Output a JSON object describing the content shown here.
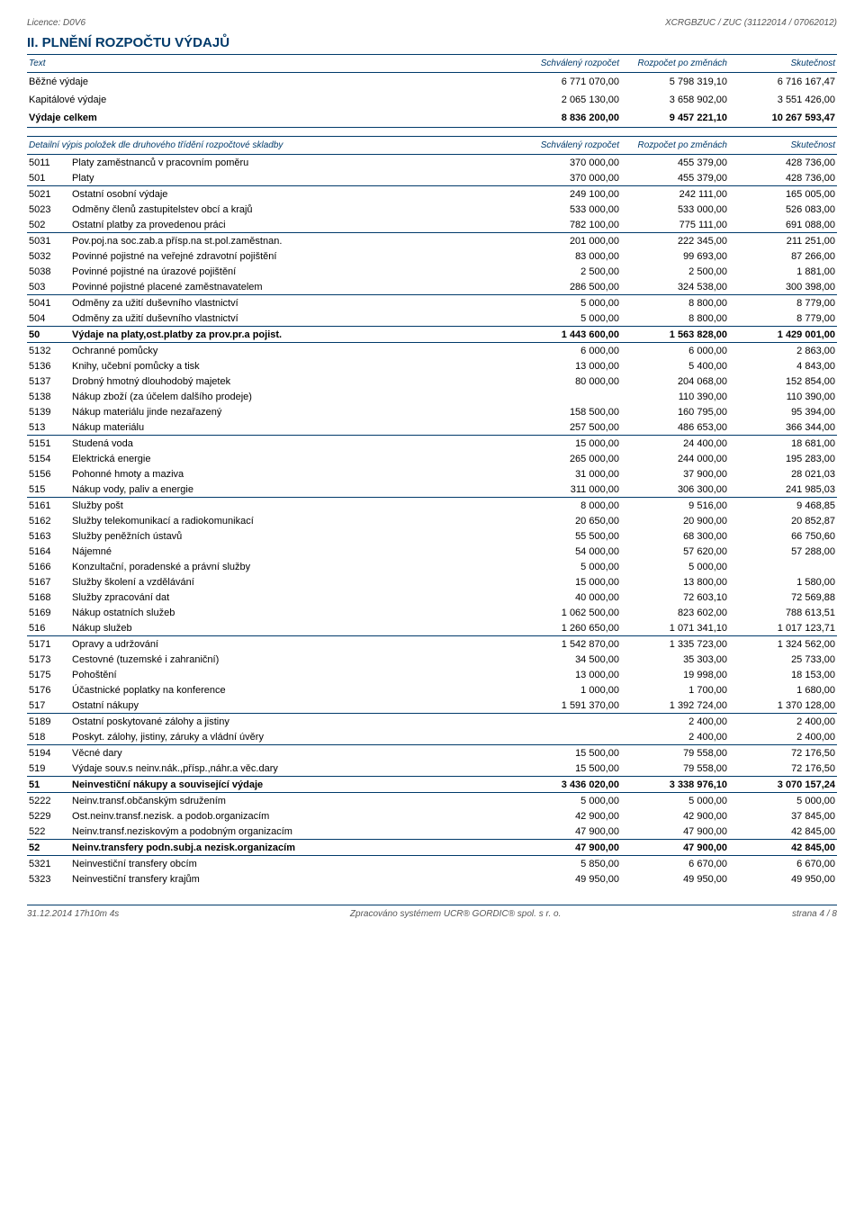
{
  "header": {
    "left": "Licence: D0V6",
    "right": "XCRGBZUC / ZUC (31122014 / 07062012)"
  },
  "title": "II. PLNĚNÍ ROZPOČTU VÝDAJŮ",
  "columns": {
    "text": "Text",
    "c1": "Schválený rozpočet",
    "c2": "Rozpočet po změnách",
    "c3": "Skutečnost"
  },
  "summary": [
    {
      "label": "Běžné výdaje",
      "v1": "6 771 070,00",
      "v2": "5 798 319,10",
      "v3": "6 716 167,47"
    },
    {
      "label": "Kapitálové výdaje",
      "v1": "2 065 130,00",
      "v2": "3 658 902,00",
      "v3": "3 551 426,00"
    },
    {
      "label": "Výdaje celkem",
      "v1": "8 836 200,00",
      "v2": "9 457 221,10",
      "v3": "10 267 593,47",
      "bold": true
    }
  ],
  "detail_header": "Detailní výpis položek dle druhového třídění rozpočtové skladby",
  "rows": [
    {
      "code": "5011",
      "label": "Platy zaměstnanců v pracovním poměru",
      "v1": "370 000,00",
      "v2": "455 379,00",
      "v3": "428 736,00"
    },
    {
      "code": "501",
      "label": "Platy",
      "v1": "370 000,00",
      "v2": "455 379,00",
      "v3": "428 736,00",
      "underline": true
    },
    {
      "code": "5021",
      "label": "Ostatní osobní výdaje",
      "v1": "249 100,00",
      "v2": "242 111,00",
      "v3": "165 005,00"
    },
    {
      "code": "5023",
      "label": "Odměny členů zastupitelstev obcí a krajů",
      "v1": "533 000,00",
      "v2": "533 000,00",
      "v3": "526 083,00"
    },
    {
      "code": "502",
      "label": "Ostatní platby za provedenou práci",
      "v1": "782 100,00",
      "v2": "775 111,00",
      "v3": "691 088,00",
      "underline": true
    },
    {
      "code": "5031",
      "label": "Pov.poj.na soc.zab.a přísp.na st.pol.zaměstnan.",
      "v1": "201 000,00",
      "v2": "222 345,00",
      "v3": "211 251,00"
    },
    {
      "code": "5032",
      "label": "Povinné pojistné na veřejné zdravotní pojištění",
      "v1": "83 000,00",
      "v2": "99 693,00",
      "v3": "87 266,00"
    },
    {
      "code": "5038",
      "label": "Povinné pojistné na úrazové pojištění",
      "v1": "2 500,00",
      "v2": "2 500,00",
      "v3": "1 881,00"
    },
    {
      "code": "503",
      "label": "Povinné pojistné placené zaměstnavatelem",
      "v1": "286 500,00",
      "v2": "324 538,00",
      "v3": "300 398,00",
      "underline": true
    },
    {
      "code": "5041",
      "label": "Odměny za užití duševního vlastnictví",
      "v1": "5 000,00",
      "v2": "8 800,00",
      "v3": "8 779,00"
    },
    {
      "code": "504",
      "label": "Odměny za užití duševního vlastnictví",
      "v1": "5 000,00",
      "v2": "8 800,00",
      "v3": "8 779,00",
      "underline": true
    },
    {
      "code": "50",
      "label": "Výdaje na platy,ost.platby za prov.pr.a pojist.",
      "v1": "1 443 600,00",
      "v2": "1 563 828,00",
      "v3": "1 429 001,00",
      "bold": true,
      "underline": true
    },
    {
      "code": "5132",
      "label": "Ochranné pomůcky",
      "v1": "6 000,00",
      "v2": "6 000,00",
      "v3": "2 863,00"
    },
    {
      "code": "5136",
      "label": "Knihy, učební pomůcky a tisk",
      "v1": "13 000,00",
      "v2": "5 400,00",
      "v3": "4 843,00"
    },
    {
      "code": "5137",
      "label": "Drobný hmotný dlouhodobý majetek",
      "v1": "80 000,00",
      "v2": "204 068,00",
      "v3": "152 854,00"
    },
    {
      "code": "5138",
      "label": "Nákup zboží (za účelem dalšího prodeje)",
      "v1": "",
      "v2": "110 390,00",
      "v3": "110 390,00"
    },
    {
      "code": "5139",
      "label": "Nákup materiálu jinde nezařazený",
      "v1": "158 500,00",
      "v2": "160 795,00",
      "v3": "95 394,00"
    },
    {
      "code": "513",
      "label": "Nákup materiálu",
      "v1": "257 500,00",
      "v2": "486 653,00",
      "v3": "366 344,00",
      "underline": true
    },
    {
      "code": "5151",
      "label": "Studená voda",
      "v1": "15 000,00",
      "v2": "24 400,00",
      "v3": "18 681,00"
    },
    {
      "code": "5154",
      "label": "Elektrická energie",
      "v1": "265 000,00",
      "v2": "244 000,00",
      "v3": "195 283,00"
    },
    {
      "code": "5156",
      "label": "Pohonné hmoty a maziva",
      "v1": "31 000,00",
      "v2": "37 900,00",
      "v3": "28 021,03"
    },
    {
      "code": "515",
      "label": "Nákup vody, paliv a energie",
      "v1": "311 000,00",
      "v2": "306 300,00",
      "v3": "241 985,03",
      "underline": true
    },
    {
      "code": "5161",
      "label": "Služby pošt",
      "v1": "8 000,00",
      "v2": "9 516,00",
      "v3": "9 468,85"
    },
    {
      "code": "5162",
      "label": "Služby telekomunikací a radiokomunikací",
      "v1": "20 650,00",
      "v2": "20 900,00",
      "v3": "20 852,87"
    },
    {
      "code": "5163",
      "label": "Služby peněžních ústavů",
      "v1": "55 500,00",
      "v2": "68 300,00",
      "v3": "66 750,60"
    },
    {
      "code": "5164",
      "label": "Nájemné",
      "v1": "54 000,00",
      "v2": "57 620,00",
      "v3": "57 288,00"
    },
    {
      "code": "5166",
      "label": "Konzultační, poradenské a právní služby",
      "v1": "5 000,00",
      "v2": "5 000,00",
      "v3": ""
    },
    {
      "code": "5167",
      "label": "Služby školení a vzdělávání",
      "v1": "15 000,00",
      "v2": "13 800,00",
      "v3": "1 580,00"
    },
    {
      "code": "5168",
      "label": "Služby zpracování dat",
      "v1": "40 000,00",
      "v2": "72 603,10",
      "v3": "72 569,88"
    },
    {
      "code": "5169",
      "label": "Nákup ostatních služeb",
      "v1": "1 062 500,00",
      "v2": "823 602,00",
      "v3": "788 613,51"
    },
    {
      "code": "516",
      "label": "Nákup služeb",
      "v1": "1 260 650,00",
      "v2": "1 071 341,10",
      "v3": "1 017 123,71",
      "underline": true
    },
    {
      "code": "5171",
      "label": "Opravy a udržování",
      "v1": "1 542 870,00",
      "v2": "1 335 723,00",
      "v3": "1 324 562,00"
    },
    {
      "code": "5173",
      "label": "Cestovné (tuzemské i zahraniční)",
      "v1": "34 500,00",
      "v2": "35 303,00",
      "v3": "25 733,00"
    },
    {
      "code": "5175",
      "label": "Pohoštění",
      "v1": "13 000,00",
      "v2": "19 998,00",
      "v3": "18 153,00"
    },
    {
      "code": "5176",
      "label": "Účastnické poplatky na konference",
      "v1": "1 000,00",
      "v2": "1 700,00",
      "v3": "1 680,00"
    },
    {
      "code": "517",
      "label": "Ostatní nákupy",
      "v1": "1 591 370,00",
      "v2": "1 392 724,00",
      "v3": "1 370 128,00",
      "underline": true
    },
    {
      "code": "5189",
      "label": "Ostatní poskytované zálohy a jistiny",
      "v1": "",
      "v2": "2 400,00",
      "v3": "2 400,00"
    },
    {
      "code": "518",
      "label": "Poskyt. zálohy, jistiny, záruky a vládní úvěry",
      "v1": "",
      "v2": "2 400,00",
      "v3": "2 400,00",
      "underline": true
    },
    {
      "code": "5194",
      "label": "Věcné dary",
      "v1": "15 500,00",
      "v2": "79 558,00",
      "v3": "72 176,50"
    },
    {
      "code": "519",
      "label": "Výdaje souv.s neinv.nák.,přísp.,náhr.a věc.dary",
      "v1": "15 500,00",
      "v2": "79 558,00",
      "v3": "72 176,50",
      "underline": true
    },
    {
      "code": "51",
      "label": "Neinvestiční nákupy a související výdaje",
      "v1": "3 436 020,00",
      "v2": "3 338 976,10",
      "v3": "3 070 157,24",
      "bold": true,
      "underline": true
    },
    {
      "code": "5222",
      "label": "Neinv.transf.občanským sdružením",
      "v1": "5 000,00",
      "v2": "5 000,00",
      "v3": "5 000,00"
    },
    {
      "code": "5229",
      "label": "Ost.neinv.transf.nezisk. a podob.organizacím",
      "v1": "42 900,00",
      "v2": "42 900,00",
      "v3": "37 845,00"
    },
    {
      "code": "522",
      "label": "Neinv.transf.neziskovým a podobným organizacím",
      "v1": "47 900,00",
      "v2": "47 900,00",
      "v3": "42 845,00",
      "underline": true
    },
    {
      "code": "52",
      "label": "Neinv.transfery podn.subj.a nezisk.organizacím",
      "v1": "47 900,00",
      "v2": "47 900,00",
      "v3": "42 845,00",
      "bold": true,
      "underline": true
    },
    {
      "code": "5321",
      "label": "Neinvestiční transfery obcím",
      "v1": "5 850,00",
      "v2": "6 670,00",
      "v3": "6 670,00"
    },
    {
      "code": "5323",
      "label": "Neinvestiční transfery krajům",
      "v1": "49 950,00",
      "v2": "49 950,00",
      "v3": "49 950,00"
    }
  ],
  "footer": {
    "left": "31.12.2014 17h10m 4s",
    "center": "Zpracováno systémem UCR® GORDIC® spol. s r. o.",
    "right": "strana 4 / 8"
  }
}
